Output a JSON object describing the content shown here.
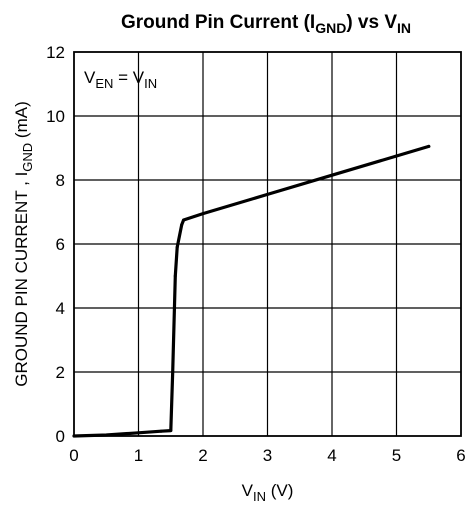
{
  "chart_data": {
    "type": "line",
    "title": {
      "prefix": "Ground Pin Current (I",
      "sub1": "GND",
      "middle": ") vs V",
      "sub2": "IN"
    },
    "xlabel": {
      "main": "V",
      "sub": "IN",
      "suffix": " (V)"
    },
    "ylabel": {
      "main": "GROUND PIN CURRENT , I",
      "sub": "GND",
      "suffix": " (mA)"
    },
    "annotation": {
      "a": "V",
      "a_sub": "EN",
      "eq": " = V",
      "b_sub": "IN"
    },
    "xlim": [
      0,
      6
    ],
    "ylim": [
      0,
      12
    ],
    "x_ticks": [
      0,
      1,
      2,
      3,
      4,
      5,
      6
    ],
    "y_ticks": [
      0,
      2,
      4,
      6,
      8,
      10,
      12
    ],
    "grid": true,
    "series": [
      {
        "x": [
          0,
          0.5,
          1.0,
          1.35,
          1.5,
          1.53,
          1.57,
          1.6,
          1.67,
          1.7,
          2.0,
          3.0,
          4.0,
          5.0,
          5.5
        ],
        "y": [
          0,
          0.03,
          0.1,
          0.15,
          0.17,
          2.0,
          5.0,
          5.9,
          6.6,
          6.75,
          6.95,
          7.55,
          8.15,
          8.75,
          9.05
        ]
      }
    ]
  }
}
